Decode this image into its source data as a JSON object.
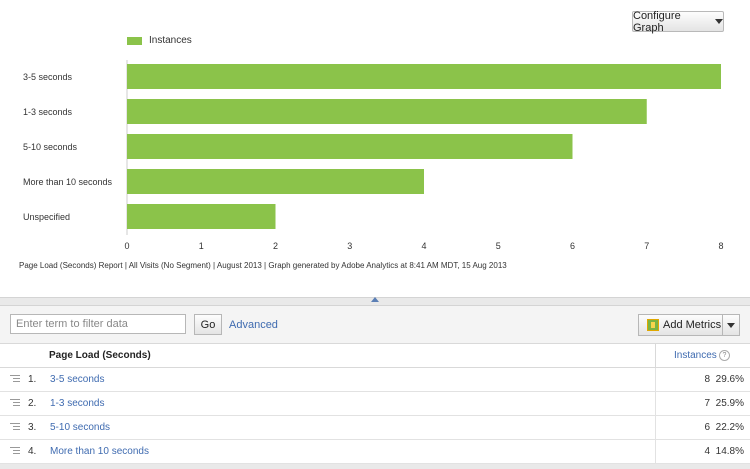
{
  "graph": {
    "configure_label": "Configure Graph",
    "legend_label": "Instances",
    "footnote": "Page Load (Seconds) Report | All Visits (No Segment) | August 2013 | Graph generated by Adobe Analytics at  8:41 AM MDT, 15 Aug 2013"
  },
  "chart_data": {
    "type": "bar",
    "orientation": "horizontal",
    "categories": [
      "3-5 seconds",
      "1-3 seconds",
      "5-10 seconds",
      "More than 10 seconds",
      "Unspecified"
    ],
    "series": [
      {
        "name": "Instances",
        "values": [
          8,
          7,
          6,
          4,
          2
        ]
      }
    ],
    "xlim": [
      0,
      8
    ],
    "xticks": [
      0,
      1,
      2,
      3,
      4,
      5,
      6,
      7,
      8
    ],
    "grid": false,
    "legend": "top-left",
    "color": "#8bc34a"
  },
  "toolbar": {
    "filter_placeholder": "Enter term to filter data",
    "go_label": "Go",
    "advanced_label": "Advanced",
    "add_metrics_label": "Add Metrics"
  },
  "table": {
    "header_name": "Page Load (Seconds)",
    "header_metric": "Instances",
    "help_glyph": "?",
    "rows": [
      {
        "rank": "1.",
        "label": "3-5 seconds",
        "count": "8",
        "pct": "29.6%"
      },
      {
        "rank": "2.",
        "label": "1-3 seconds",
        "count": "7",
        "pct": "25.9%"
      },
      {
        "rank": "3.",
        "label": "5-10 seconds",
        "count": "6",
        "pct": "22.2%"
      },
      {
        "rank": "4.",
        "label": "More than 10 seconds",
        "count": "4",
        "pct": "14.8%"
      }
    ]
  }
}
